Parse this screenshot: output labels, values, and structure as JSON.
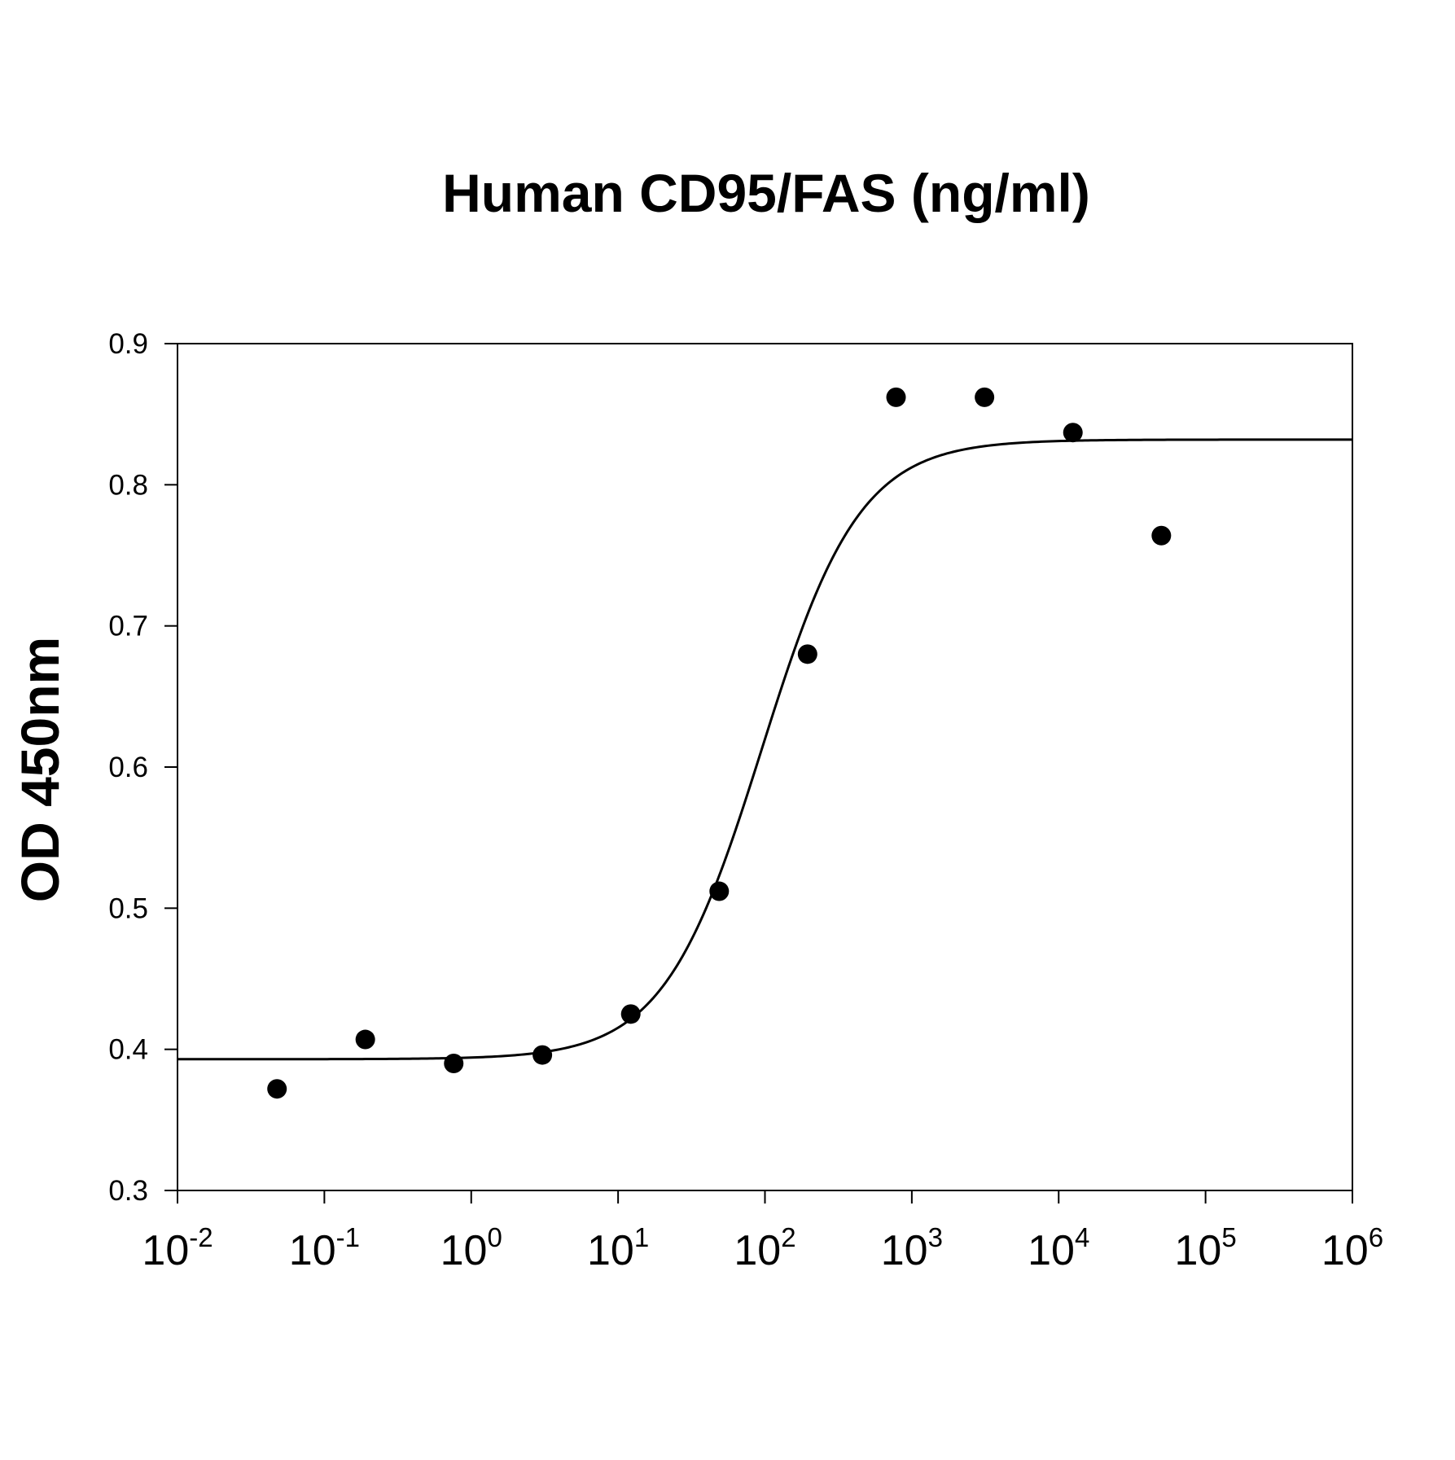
{
  "chart_data": {
    "type": "scatter",
    "title": "Human CD95/FAS (ng/ml)",
    "xlabel": "",
    "ylabel": "OD 450nm",
    "x_scale": "log",
    "xlim": [
      0.01,
      1000000
    ],
    "ylim": [
      0.3,
      0.9
    ],
    "grid": false,
    "y_ticks": [
      "0.3",
      "0.4",
      "0.5",
      "0.6",
      "0.7",
      "0.8",
      "0.9"
    ],
    "x_ticks": [
      {
        "base": "10",
        "exp": "-2"
      },
      {
        "base": "10",
        "exp": "-1"
      },
      {
        "base": "10",
        "exp": "0"
      },
      {
        "base": "10",
        "exp": "1"
      },
      {
        "base": "10",
        "exp": "2"
      },
      {
        "base": "10",
        "exp": "3"
      },
      {
        "base": "10",
        "exp": "4"
      },
      {
        "base": "10",
        "exp": "5"
      },
      {
        "base": "10",
        "exp": "6"
      }
    ],
    "points": [
      {
        "x": 0.0476,
        "y": 0.372
      },
      {
        "x": 0.19,
        "y": 0.407
      },
      {
        "x": 0.76,
        "y": 0.39
      },
      {
        "x": 3.05,
        "y": 0.396
      },
      {
        "x": 12.2,
        "y": 0.425
      },
      {
        "x": 48.8,
        "y": 0.512
      },
      {
        "x": 195,
        "y": 0.68
      },
      {
        "x": 781,
        "y": 0.862
      },
      {
        "x": 3125,
        "y": 0.862
      },
      {
        "x": 12500,
        "y": 0.837
      },
      {
        "x": 50000,
        "y": 0.764
      }
    ],
    "fit": {
      "model": "4PL",
      "bottom": 0.393,
      "top": 0.832,
      "ec50": 95,
      "hill": 1.3
    },
    "colors": {
      "points": "#000000",
      "curve": "#000000",
      "axis": "#000000"
    }
  }
}
